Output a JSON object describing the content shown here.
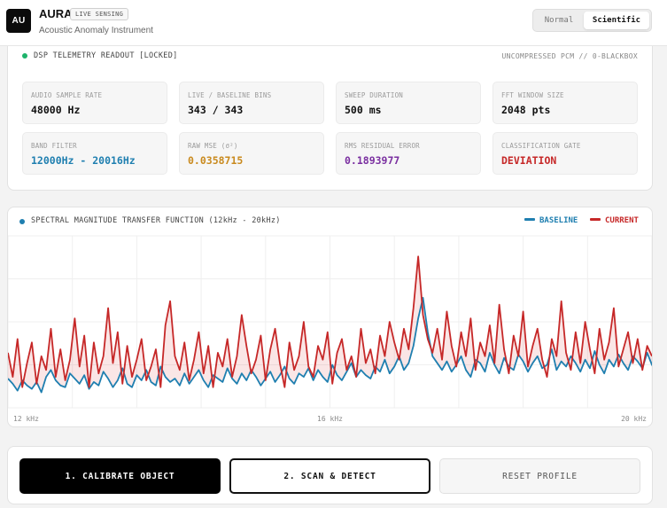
{
  "app": {
    "logo": "AU",
    "name": "AURA",
    "badge": "LIVE SENSING",
    "subtitle": "Acoustic Anomaly Instrument"
  },
  "mode": {
    "options": [
      "Normal",
      "Scientific"
    ],
    "selected": "Scientific"
  },
  "telemetry": {
    "title": "DSP TELEMETRY READOUT [LOCKED]",
    "right_label": "UNCOMPRESSED PCM // 0-BLACKBOX",
    "status_color": "#1db36b",
    "stats": [
      {
        "label": "AUDIO SAMPLE RATE",
        "value": "48000 Hz",
        "color": "#111111"
      },
      {
        "label": "LIVE / BASELINE BINS",
        "value": "343 / 343",
        "color": "#111111"
      },
      {
        "label": "SWEEP DURATION",
        "value": "500 ms",
        "color": "#111111"
      },
      {
        "label": "FFT WINDOW SIZE",
        "value": "2048 pts",
        "color": "#111111"
      },
      {
        "label": "BAND FILTER",
        "value": "12000Hz - 20016Hz",
        "color": "#1f7fb0"
      },
      {
        "label": "RAW MSE (σ²)",
        "value": "0.0358715",
        "color": "#c98a1e"
      },
      {
        "label": "RMS RESIDUAL ERROR",
        "value": "0.1893977",
        "color": "#7a2fa0"
      },
      {
        "label": "CLASSIFICATION GATE",
        "value": "DEVIATION",
        "color": "#c62828"
      }
    ]
  },
  "chart_panel": {
    "title": "SPECTRAL MAGNITUDE TRANSFER FUNCTION (12kHz - 20kHz)",
    "dot_color": "#1f7fb0",
    "legend": [
      {
        "name": "BASELINE",
        "color": "#1f7fb0"
      },
      {
        "name": "CURRENT",
        "color": "#c62828"
      }
    ]
  },
  "chart_data": {
    "type": "line",
    "x_range": [
      12,
      20
    ],
    "x_unit": "kHz",
    "x_tick_labels": [
      "12 kHz",
      "16 kHz",
      "20 kHz"
    ],
    "x_ticks": [
      12,
      16,
      20
    ],
    "y_range": [
      0,
      1
    ],
    "grid": true,
    "legend_position": "top-right",
    "fill_between": true,
    "series": [
      {
        "name": "BASELINE",
        "color": "#1f7fb0",
        "values": [
          0.17,
          0.14,
          0.1,
          0.16,
          0.13,
          0.11,
          0.15,
          0.09,
          0.18,
          0.22,
          0.16,
          0.13,
          0.12,
          0.2,
          0.17,
          0.14,
          0.19,
          0.11,
          0.15,
          0.13,
          0.21,
          0.17,
          0.12,
          0.16,
          0.23,
          0.14,
          0.12,
          0.19,
          0.16,
          0.22,
          0.15,
          0.13,
          0.24,
          0.18,
          0.15,
          0.17,
          0.13,
          0.2,
          0.14,
          0.18,
          0.22,
          0.16,
          0.12,
          0.19,
          0.17,
          0.15,
          0.23,
          0.17,
          0.14,
          0.2,
          0.16,
          0.22,
          0.18,
          0.13,
          0.17,
          0.21,
          0.15,
          0.19,
          0.24,
          0.17,
          0.14,
          0.2,
          0.18,
          0.23,
          0.16,
          0.22,
          0.18,
          0.15,
          0.25,
          0.19,
          0.16,
          0.21,
          0.26,
          0.18,
          0.22,
          0.19,
          0.17,
          0.24,
          0.21,
          0.28,
          0.2,
          0.24,
          0.3,
          0.22,
          0.26,
          0.36,
          0.52,
          0.64,
          0.44,
          0.3,
          0.26,
          0.22,
          0.27,
          0.21,
          0.25,
          0.3,
          0.22,
          0.18,
          0.28,
          0.26,
          0.21,
          0.32,
          0.25,
          0.2,
          0.29,
          0.24,
          0.22,
          0.31,
          0.27,
          0.21,
          0.26,
          0.3,
          0.23,
          0.25,
          0.34,
          0.22,
          0.27,
          0.24,
          0.3,
          0.26,
          0.21,
          0.28,
          0.23,
          0.33,
          0.25,
          0.2,
          0.28,
          0.24,
          0.31,
          0.26,
          0.22,
          0.3,
          0.27,
          0.23,
          0.32,
          0.25,
          0.2
        ]
      },
      {
        "name": "CURRENT",
        "color": "#c62828",
        "values": [
          0.32,
          0.18,
          0.4,
          0.12,
          0.26,
          0.38,
          0.14,
          0.3,
          0.22,
          0.46,
          0.18,
          0.34,
          0.16,
          0.28,
          0.52,
          0.24,
          0.42,
          0.12,
          0.38,
          0.2,
          0.3,
          0.58,
          0.26,
          0.44,
          0.14,
          0.36,
          0.18,
          0.28,
          0.4,
          0.16,
          0.24,
          0.34,
          0.12,
          0.48,
          0.62,
          0.3,
          0.22,
          0.38,
          0.16,
          0.28,
          0.44,
          0.2,
          0.36,
          0.12,
          0.32,
          0.24,
          0.4,
          0.18,
          0.3,
          0.54,
          0.36,
          0.2,
          0.28,
          0.42,
          0.16,
          0.34,
          0.46,
          0.26,
          0.12,
          0.38,
          0.22,
          0.3,
          0.5,
          0.24,
          0.18,
          0.36,
          0.28,
          0.44,
          0.14,
          0.32,
          0.4,
          0.22,
          0.3,
          0.18,
          0.46,
          0.26,
          0.34,
          0.2,
          0.42,
          0.3,
          0.5,
          0.38,
          0.28,
          0.46,
          0.34,
          0.58,
          0.88,
          0.54,
          0.4,
          0.32,
          0.46,
          0.28,
          0.56,
          0.36,
          0.24,
          0.44,
          0.3,
          0.52,
          0.22,
          0.38,
          0.3,
          0.48,
          0.26,
          0.6,
          0.34,
          0.2,
          0.42,
          0.3,
          0.56,
          0.24,
          0.36,
          0.46,
          0.28,
          0.18,
          0.4,
          0.3,
          0.62,
          0.32,
          0.22,
          0.44,
          0.26,
          0.5,
          0.34,
          0.2,
          0.46,
          0.28,
          0.38,
          0.58,
          0.24,
          0.34,
          0.44,
          0.26,
          0.4,
          0.22,
          0.36,
          0.3
        ]
      }
    ]
  },
  "actions": {
    "calibrate": "1. CALIBRATE OBJECT",
    "scan": "2. SCAN & DETECT",
    "reset": "RESET PROFILE"
  }
}
